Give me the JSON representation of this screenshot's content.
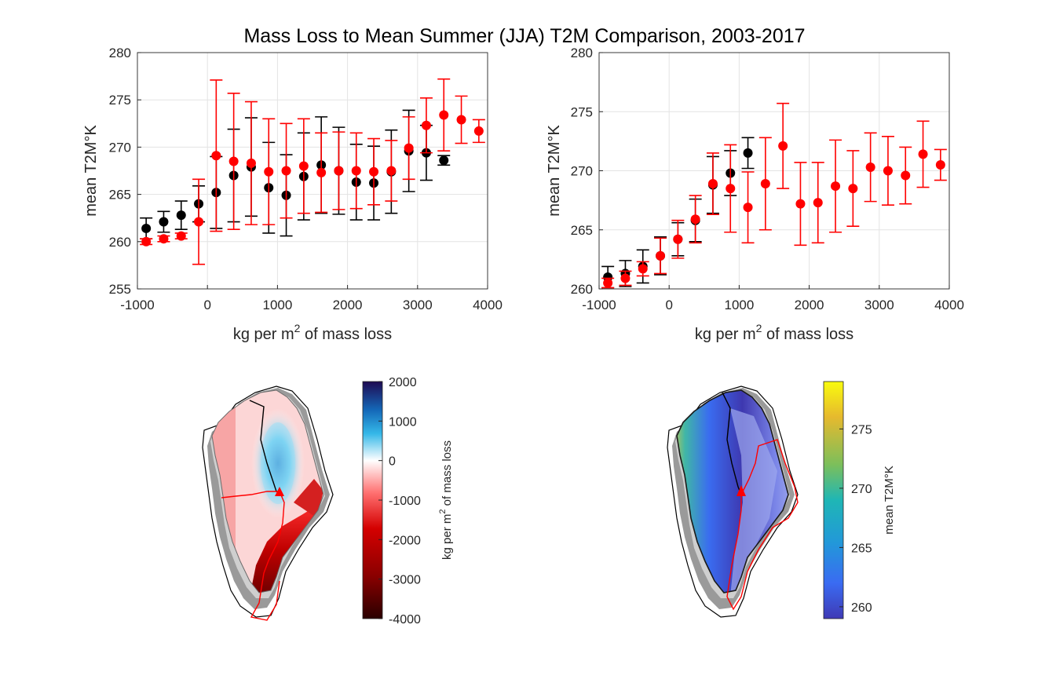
{
  "title": "Mass Loss to Mean Summer (JJA) T2M Comparison, 2003-2017",
  "chart_data": [
    {
      "type": "scatter",
      "xlim": [
        -1000,
        4000
      ],
      "ylim": [
        255,
        280
      ],
      "xticks": [
        -1000,
        0,
        1000,
        2000,
        3000,
        4000
      ],
      "yticks": [
        255,
        260,
        265,
        270,
        275,
        280
      ],
      "xlabel": "kg per m",
      "xlabel_sup": "2",
      "xlabel_rest": " of mass loss",
      "ylabel": "mean T2M°K",
      "grid": true,
      "series": [
        {
          "color": "#000000",
          "x": [
            -875,
            -625,
            -375,
            -125,
            125,
            375,
            625,
            875,
            1125,
            1375,
            1625,
            1875,
            2125,
            2375,
            2625,
            2875,
            3125,
            3375
          ],
          "y": [
            261.4,
            262.1,
            262.8,
            264.0,
            265.2,
            267.0,
            267.9,
            265.7,
            264.9,
            266.9,
            268.1,
            267.5,
            266.3,
            266.2,
            267.4,
            269.6,
            269.4,
            268.6
          ],
          "err": [
            1.1,
            1.1,
            1.5,
            1.9,
            3.8,
            4.9,
            5.2,
            4.8,
            4.3,
            4.6,
            5.1,
            4.6,
            4.0,
            3.9,
            4.4,
            4.3,
            2.9,
            0.5
          ]
        },
        {
          "color": "#ff0000",
          "x": [
            -875,
            -625,
            -375,
            -125,
            125,
            375,
            625,
            875,
            1125,
            1375,
            1625,
            1875,
            2125,
            2375,
            2625,
            2875,
            3125,
            3375,
            3625,
            3875
          ],
          "y": [
            260.0,
            260.3,
            260.6,
            262.1,
            269.1,
            268.5,
            268.3,
            267.4,
            267.5,
            268.0,
            267.3,
            267.5,
            267.5,
            267.4,
            267.5,
            269.9,
            272.3,
            273.4,
            272.9,
            271.7
          ],
          "err": [
            0.3,
            0.3,
            0.3,
            4.5,
            8.0,
            7.2,
            6.5,
            5.6,
            5.0,
            5.0,
            4.2,
            4.1,
            4.0,
            3.5,
            3.2,
            3.3,
            2.9,
            3.8,
            2.5,
            1.2
          ]
        }
      ]
    },
    {
      "type": "scatter",
      "xlim": [
        -1000,
        4000
      ],
      "ylim": [
        260,
        280
      ],
      "xticks": [
        -1000,
        0,
        1000,
        2000,
        3000,
        4000
      ],
      "yticks": [
        260,
        265,
        270,
        275,
        280
      ],
      "xlabel": "kg per m",
      "xlabel_sup": "2",
      "xlabel_rest": " of mass loss",
      "ylabel": "mean T2M°K",
      "grid": true,
      "series": [
        {
          "color": "#000000",
          "x": [
            -875,
            -625,
            -375,
            -125,
            125,
            375,
            625,
            875,
            1125
          ],
          "y": [
            261.0,
            261.3,
            261.9,
            262.8,
            264.2,
            265.8,
            268.8,
            269.8,
            271.5
          ],
          "err": [
            0.9,
            1.1,
            1.4,
            1.6,
            1.4,
            1.8,
            2.4,
            1.9,
            1.3
          ]
        },
        {
          "color": "#ff0000",
          "x": [
            -875,
            -625,
            -375,
            -125,
            125,
            375,
            625,
            875,
            1125,
            1375,
            1625,
            1875,
            2125,
            2375,
            2625,
            2875,
            3125,
            3375,
            3625,
            3875
          ],
          "y": [
            260.5,
            260.9,
            261.7,
            262.8,
            264.2,
            265.9,
            268.9,
            268.5,
            266.9,
            268.9,
            272.1,
            267.2,
            267.3,
            268.7,
            268.5,
            270.3,
            270.0,
            269.6,
            271.4,
            270.5
          ],
          "err": [
            0.4,
            0.6,
            0.6,
            1.5,
            1.6,
            2.0,
            2.6,
            3.7,
            3.0,
            3.9,
            3.6,
            3.5,
            3.4,
            3.9,
            3.2,
            2.9,
            2.9,
            2.4,
            2.8,
            1.3
          ]
        }
      ]
    }
  ],
  "maps": {
    "left_colorbar": {
      "ticks": [
        "2000",
        "1000",
        "0",
        "-1000",
        "-2000",
        "-3000",
        "-4000"
      ],
      "label": "kg per m",
      "label_sup": "2",
      "label_rest": " of mass loss",
      "colors": [
        "#1f0a52",
        "#1468b8",
        "#35b8e8",
        "#ffffff",
        "#ff7070",
        "#d40000",
        "#8a0000",
        "#2a0000"
      ]
    },
    "right_colorbar": {
      "ticks": [
        "275",
        "270",
        "265",
        "260"
      ],
      "label": "mean T2M°K",
      "colors": [
        "#f9fb0e",
        "#e6b92e",
        "#7cbf5b",
        "#1fb6b5",
        "#2298d9",
        "#3a6bf2",
        "#3f3ab5"
      ]
    },
    "outline_colors": {
      "land": "#8c8c8c",
      "ice_light": "#c8c8c8",
      "basin_left": "#000000",
      "basin_right": "#ff0000"
    }
  }
}
